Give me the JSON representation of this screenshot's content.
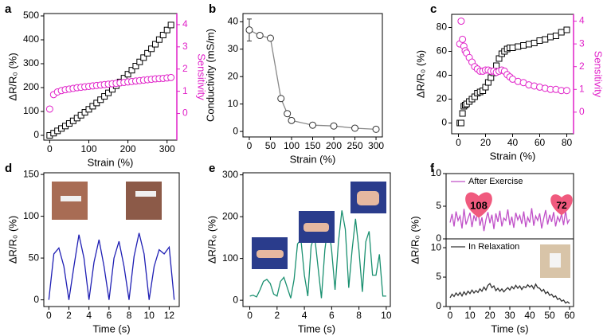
{
  "chart_data": [
    {
      "type": "scatter",
      "panel": "a",
      "xlabel": "Strain (%)",
      "ylabel": "ΔR/R₀ (%)",
      "y2label": "Sensitivity",
      "y2color": "#e020c8",
      "xlim": [
        -15,
        325
      ],
      "xticks": [
        0,
        100,
        200,
        300
      ],
      "ylim": [
        -20,
        510
      ],
      "yticks": [
        0,
        100,
        200,
        300,
        400,
        500
      ],
      "y2lim": [
        -1.2,
        4.5
      ],
      "y2ticks": [
        0,
        1,
        2,
        3,
        4
      ],
      "x": [
        0,
        10,
        20,
        30,
        40,
        50,
        60,
        70,
        80,
        90,
        100,
        110,
        120,
        130,
        140,
        150,
        160,
        170,
        180,
        190,
        200,
        210,
        220,
        230,
        240,
        250,
        260,
        270,
        280,
        290,
        300,
        310
      ],
      "series": [
        {
          "color": "#000000",
          "marker": "square",
          "values": [
            0,
            9.2,
            18.8,
            28.7,
            39,
            49.8,
            60.8,
            72.3,
            84.2,
            96.4,
            109,
            122,
            135.4,
            149.1,
            163.2,
            177.8,
            192.6,
            207.9,
            223.6,
            239.6,
            256,
            272.8,
            290,
            307.5,
            325.4,
            343.8,
            362.4,
            381.5,
            401,
            420,
            441,
            462
          ]
        },
        {
          "color": "#e020c8",
          "marker": "circle",
          "axis": "y2",
          "values": [
            0.2,
            0.85,
            0.97,
            1.03,
            1.07,
            1.1,
            1.13,
            1.16,
            1.18,
            1.2,
            1.22,
            1.24,
            1.26,
            1.28,
            1.3,
            1.32,
            1.34,
            1.36,
            1.38,
            1.4,
            1.42,
            1.44,
            1.46,
            1.48,
            1.5,
            1.52,
            1.54,
            1.56,
            1.57,
            1.58,
            1.6,
            1.62
          ]
        }
      ]
    },
    {
      "type": "line",
      "panel": "b",
      "xlabel": "Strain (%)",
      "ylabel": "Conductivity (mS/m)",
      "xlim": [
        -15,
        315
      ],
      "xticks": [
        0,
        50,
        100,
        150,
        200,
        250,
        300
      ],
      "ylim": [
        -2,
        43
      ],
      "yticks": [
        0,
        10,
        20,
        30,
        40
      ],
      "x": [
        0,
        25,
        50,
        75,
        90,
        100,
        150,
        200,
        250,
        300
      ],
      "series": [
        {
          "color": "#333333",
          "line_color": "#888888",
          "marker": "circle",
          "values": [
            37,
            35,
            34,
            12,
            6.5,
            4,
            2.3,
            2,
            1.2,
            0.8
          ],
          "errors": [
            4,
            null,
            null,
            null,
            null,
            null,
            null,
            null,
            null,
            null
          ]
        }
      ]
    },
    {
      "type": "scatter",
      "panel": "c",
      "xlabel": "Strain (%)",
      "ylabel": "ΔR/R₀ (%)",
      "y2label": "Sensitivity",
      "y2color": "#e020c8",
      "xlim": [
        -5,
        85
      ],
      "xticks": [
        0,
        20,
        40,
        60,
        80
      ],
      "ylim": [
        -9,
        91
      ],
      "yticks": [
        0,
        20,
        40,
        60,
        80
      ],
      "y2lim": [
        -0.95,
        4.3
      ],
      "y2ticks": [
        0,
        1,
        2,
        3,
        4
      ],
      "x": [
        1,
        2,
        3,
        4,
        5,
        6,
        8,
        10,
        12,
        14,
        16,
        18,
        20,
        22,
        24,
        26,
        28,
        30,
        32,
        34,
        36,
        38,
        40,
        44,
        48,
        52,
        56,
        60,
        64,
        68,
        72,
        76,
        80
      ],
      "series": [
        {
          "color": "#000000",
          "marker": "square",
          "values": [
            0,
            0,
            8,
            14,
            15,
            16,
            18,
            20,
            22,
            25,
            26,
            27,
            30,
            34,
            38,
            42,
            48,
            54,
            58,
            60,
            62,
            63,
            63,
            64,
            65,
            66,
            67,
            69,
            70,
            72,
            73,
            76,
            78
          ]
        },
        {
          "color": "#e020c8",
          "marker": "circle",
          "axis": "y2",
          "values": [
            3.0,
            4.0,
            3.2,
            2.9,
            2.7,
            2.6,
            2.4,
            2.2,
            2.0,
            1.9,
            1.8,
            1.8,
            1.85,
            1.85,
            1.8,
            1.8,
            1.75,
            1.8,
            1.85,
            1.8,
            1.65,
            1.55,
            1.45,
            1.35,
            1.3,
            1.2,
            1.15,
            1.1,
            1.05,
            1.0,
            1.0,
            0.95,
            0.95
          ]
        }
      ]
    },
    {
      "type": "line",
      "panel": "d",
      "xlabel": "Time (s)",
      "ylabel": "ΔR/R₀ (%)",
      "xlim": [
        -0.5,
        13
      ],
      "xticks": [
        0,
        2,
        4,
        6,
        8,
        10,
        12
      ],
      "ylim": [
        -8,
        152
      ],
      "yticks": [
        0,
        50,
        100,
        150
      ],
      "x": [
        0,
        0.5,
        1,
        1.5,
        2,
        2.5,
        3,
        3.5,
        4,
        4.5,
        5,
        5.5,
        6,
        6.5,
        7,
        7.5,
        8,
        8.5,
        9,
        9.5,
        10,
        10.5,
        11,
        11.5,
        12,
        12.5
      ],
      "series": [
        {
          "color": "#1f1fb4",
          "values": [
            0,
            55,
            62,
            40,
            0,
            40,
            78,
            50,
            0,
            45,
            72,
            40,
            0,
            50,
            70,
            40,
            0,
            52,
            80,
            55,
            0,
            40,
            60,
            55,
            63,
            0
          ]
        }
      ]
    },
    {
      "type": "line",
      "panel": "e",
      "xlabel": "Time (s)",
      "ylabel": "ΔR/R₀ (%)",
      "xlim": [
        -0.5,
        10.3
      ],
      "xticks": [
        0,
        2,
        4,
        6,
        8,
        10
      ],
      "ylim": [
        -15,
        305
      ],
      "yticks": [
        0,
        100,
        200,
        300
      ],
      "x": [
        0,
        0.25,
        0.5,
        0.75,
        1,
        1.25,
        1.5,
        1.75,
        2,
        2.25,
        2.5,
        2.75,
        3,
        3.25,
        3.5,
        3.75,
        4,
        4.25,
        4.5,
        4.75,
        5,
        5.25,
        5.5,
        5.75,
        6,
        6.25,
        6.5,
        6.75,
        7,
        7.25,
        7.5,
        7.75,
        8,
        8.25,
        8.5,
        8.75,
        9,
        9.25,
        9.5,
        9.75,
        10
      ],
      "series": [
        {
          "color": "#1a9070",
          "values": [
            10,
            12,
            8,
            25,
            45,
            50,
            40,
            15,
            10,
            45,
            55,
            30,
            5,
            50,
            135,
            145,
            60,
            10,
            130,
            155,
            80,
            5,
            120,
            185,
            120,
            25,
            140,
            215,
            170,
            30,
            120,
            195,
            120,
            20,
            140,
            165,
            60,
            60,
            110,
            10,
            10
          ]
        }
      ]
    },
    {
      "type": "line",
      "panel": "f",
      "ylabel": "ΔR/R₀ (%)",
      "legend": "upper left",
      "annotations": [
        "108",
        "72"
      ],
      "xlim": [
        -2,
        62
      ],
      "ylim": [
        0,
        10
      ],
      "yticks": [
        0,
        5,
        10
      ],
      "x": [
        0,
        1,
        2,
        3,
        4,
        5,
        6,
        7,
        8,
        9,
        10,
        11,
        12,
        13,
        14,
        15,
        16,
        17,
        18,
        19,
        20,
        21,
        22,
        23,
        24,
        25,
        26,
        27,
        28,
        29,
        30,
        31,
        32,
        33,
        34,
        35,
        36,
        37,
        38,
        39,
        40,
        41,
        42,
        43,
        44,
        45,
        46,
        47,
        48,
        49,
        50,
        51,
        52,
        53,
        54,
        55,
        56,
        57,
        58,
        59,
        60
      ],
      "series": [
        {
          "name": "After Exercise",
          "color": "#c050c8",
          "values": [
            2.5,
            3.8,
            1.9,
            4.2,
            2.8,
            3.5,
            1.6,
            4.6,
            2.2,
            3.1,
            4.0,
            1.8,
            3.6,
            2.7,
            4.4,
            2.0,
            3.3,
            1.2,
            2.9,
            4.1,
            2.4,
            3.7,
            1.5,
            3.9,
            2.6,
            4.3,
            1.9,
            3.2,
            2.8,
            4.5,
            2.1,
            3.4,
            1.7,
            4.0,
            2.9,
            3.6,
            2.3,
            4.2,
            1.8,
            3.3,
            2.5,
            4.7,
            2.0,
            3.5,
            2.8,
            3.9,
            1.6,
            3.1,
            4.4,
            2.2,
            3.7,
            2.6,
            4.1,
            1.9,
            3.4,
            2.7,
            3.8,
            2.1,
            4.3,
            2.4,
            3.0
          ]
        }
      ]
    },
    {
      "type": "line",
      "xlabel": "Time (s)",
      "legend": "upper left",
      "xlim": [
        -2,
        62
      ],
      "xticks": [
        0,
        10,
        20,
        30,
        40,
        50,
        60
      ],
      "ylim": [
        0,
        11.5
      ],
      "yticks": [
        0,
        5,
        10
      ],
      "x": [
        0,
        1,
        2,
        3,
        4,
        5,
        6,
        7,
        8,
        9,
        10,
        11,
        12,
        13,
        14,
        15,
        16,
        17,
        18,
        19,
        20,
        21,
        22,
        23,
        24,
        25,
        26,
        27,
        28,
        29,
        30,
        31,
        32,
        33,
        34,
        35,
        36,
        37,
        38,
        39,
        40,
        41,
        42,
        43,
        44,
        45,
        46,
        47,
        48,
        49,
        50,
        51,
        52,
        53,
        54,
        55,
        56,
        57,
        58,
        59,
        60
      ],
      "series": [
        {
          "name": "In Relaxation",
          "color": "#333333",
          "values": [
            1.5,
            2.1,
            1.7,
            2.3,
            1.9,
            2.4,
            1.8,
            2.5,
            2.0,
            2.6,
            2.2,
            2.8,
            2.3,
            2.7,
            2.4,
            3.0,
            2.6,
            3.3,
            2.8,
            3.6,
            3.9,
            3.2,
            3.5,
            2.7,
            3.1,
            2.6,
            3.0,
            2.5,
            2.9,
            3.2,
            2.8,
            3.4,
            3.0,
            3.6,
            3.1,
            3.5,
            2.9,
            3.4,
            3.2,
            3.7,
            3.3,
            3.6,
            3.0,
            3.8,
            3.2,
            3.1,
            2.6,
            2.9,
            2.2,
            2.5,
            1.9,
            2.1,
            1.6,
            1.8,
            1.2,
            1.4,
            0.9,
            1.1,
            0.6,
            0.8,
            0.5
          ]
        }
      ]
    }
  ]
}
